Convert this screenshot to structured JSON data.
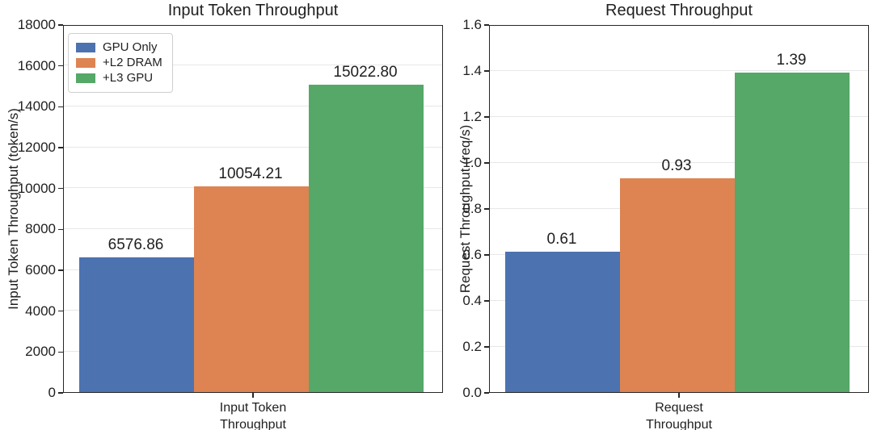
{
  "style": {
    "palette": [
      "#4C72B0",
      "#DD8452",
      "#55A868"
    ],
    "grid_color": "#e7e7e7",
    "spine_color": "#262626",
    "text_color": "#1f1f1f",
    "legend_border_color": "#cfcfcf",
    "background": "#ffffff"
  },
  "chart_data": [
    {
      "type": "bar",
      "title": "Input Token Throughput",
      "ylabel": "Input Token Throughput (token/s)",
      "xlabel": "",
      "categories": [
        "GPU Only",
        "+L2 DRAM",
        "+L3 GPU"
      ],
      "values": [
        6576.86,
        10054.21,
        15022.8
      ],
      "bar_labels": [
        "6576.86",
        "10054.21",
        "15022.80"
      ],
      "xtick_lines": [
        "Input Token",
        "Throughput"
      ],
      "ylim": [
        0,
        18000
      ],
      "grid": true,
      "legend": {
        "position": "upper left",
        "entries": [
          "GPU Only",
          "+L2 DRAM",
          "+L3 GPU"
        ]
      },
      "yticks": [
        {
          "value": 0,
          "label": "0"
        },
        {
          "value": 2000,
          "label": "2000"
        },
        {
          "value": 4000,
          "label": "4000"
        },
        {
          "value": 6000,
          "label": "6000"
        },
        {
          "value": 8000,
          "label": "8000"
        },
        {
          "value": 10000,
          "label": "10000"
        },
        {
          "value": 12000,
          "label": "12000"
        },
        {
          "value": 14000,
          "label": "14000"
        },
        {
          "value": 16000,
          "label": "16000"
        },
        {
          "value": 18000,
          "label": "18000"
        }
      ]
    },
    {
      "type": "bar",
      "title": "Request Throughput",
      "ylabel": "Request Throughput (req/s)",
      "xlabel": "",
      "categories": [
        "GPU Only",
        "+L2 DRAM",
        "+L3 GPU"
      ],
      "values": [
        0.61,
        0.93,
        1.39
      ],
      "bar_labels": [
        "0.61",
        "0.93",
        "1.39"
      ],
      "xtick_lines": [
        "Request",
        "Throughput"
      ],
      "ylim": [
        0,
        1.6
      ],
      "grid": true,
      "legend": null,
      "yticks": [
        {
          "value": 0.0,
          "label": "0.0"
        },
        {
          "value": 0.2,
          "label": "0.2"
        },
        {
          "value": 0.4,
          "label": "0.4"
        },
        {
          "value": 0.6,
          "label": "0.6"
        },
        {
          "value": 0.8,
          "label": "0.8"
        },
        {
          "value": 1.0,
          "label": "1.0"
        },
        {
          "value": 1.2,
          "label": "1.2"
        },
        {
          "value": 1.4,
          "label": "1.4"
        },
        {
          "value": 1.6,
          "label": "1.6"
        }
      ]
    }
  ]
}
